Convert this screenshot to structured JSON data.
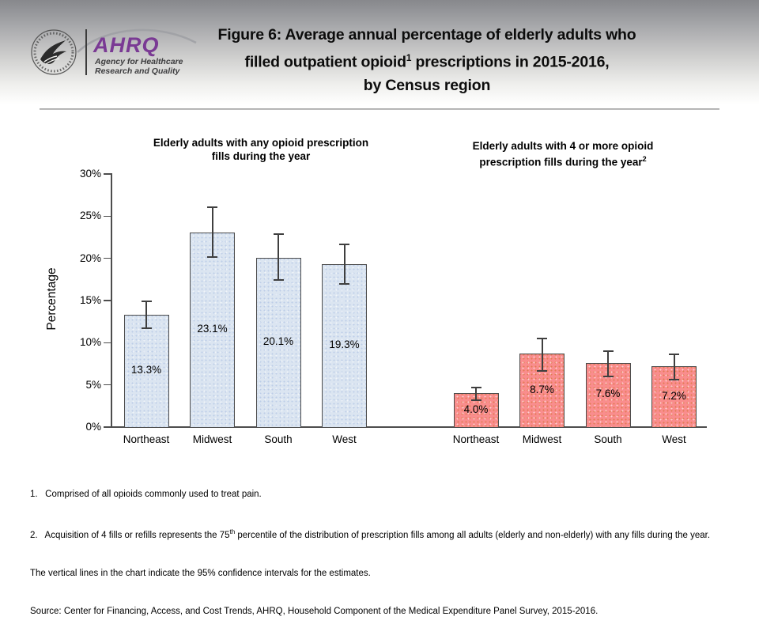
{
  "header": {
    "logo": {
      "seal_name": "hhs-eagle-seal",
      "ahrq_text": "AHRQ",
      "tagline_line1": "Agency for Healthcare",
      "tagline_line2": "Research and Quality"
    },
    "title": {
      "line1": "Figure 6: Average annual percentage of elderly adults who",
      "line2_pre": "filled outpatient opioid",
      "line2_sup": "1",
      "line2_post": " prescriptions in 2015-2016,",
      "line3": "by Census region"
    }
  },
  "chart_data": {
    "type": "bar",
    "ylabel": "Percentage",
    "ylim": [
      0,
      30
    ],
    "ytick_step": 5,
    "ytick_labels": [
      "0%",
      "5%",
      "10%",
      "15%",
      "20%",
      "25%",
      "30%"
    ],
    "grid": false,
    "error_bar_meaning": "95% confidence intervals",
    "groups": [
      {
        "id": "any-fills",
        "title_line1": "Elderly adults with any opioid prescription",
        "title_line2": "fills during the year",
        "title_sup": "",
        "bar_color": "#dbe5f1",
        "dot_color": "rgba(130,160,215,0.35)",
        "categories": [
          "Northeast",
          "Midwest",
          "South",
          "West"
        ],
        "values": [
          13.3,
          23.1,
          20.1,
          19.3
        ],
        "labels": [
          "13.3%",
          "23.1%",
          "20.1%",
          "19.3%"
        ],
        "ci_low": [
          11.7,
          20.2,
          17.4,
          17.0
        ],
        "ci_high": [
          14.9,
          26.1,
          22.9,
          21.7
        ]
      },
      {
        "id": "four-or-more-fills",
        "title_line1": "Elderly adults with 4 or more opioid",
        "title_line2": "prescription fills during the year",
        "title_sup": "2",
        "bar_color": "#f98d8d",
        "dot_color": "rgba(205,110,35,0.55)",
        "categories": [
          "Northeast",
          "Midwest",
          "South",
          "West"
        ],
        "values": [
          4.0,
          8.7,
          7.6,
          7.2
        ],
        "labels": [
          "4.0%",
          "8.7%",
          "7.6%",
          "7.2%"
        ],
        "ci_low": [
          3.2,
          6.7,
          6.0,
          5.6
        ],
        "ci_high": [
          4.7,
          10.5,
          9.0,
          8.6
        ]
      }
    ]
  },
  "footnotes": {
    "note1": "1.   Comprised of all opioids commonly used to treat pain.",
    "note2_pre": "2.   Acquisition of 4 fills or refills represents the 75",
    "note2_sup": "th",
    "note2_post": " percentile of the distribution of prescription fills among all adults (elderly and non-elderly) with any fills during the year.",
    "note3": "The vertical lines in the chart indicate the 95% confidence intervals for the estimates.",
    "source": "Source: Center for Financing, Access, and Cost Trends, AHRQ, Household Component of the Medical Expenditure Panel Survey, 2015-2016."
  }
}
